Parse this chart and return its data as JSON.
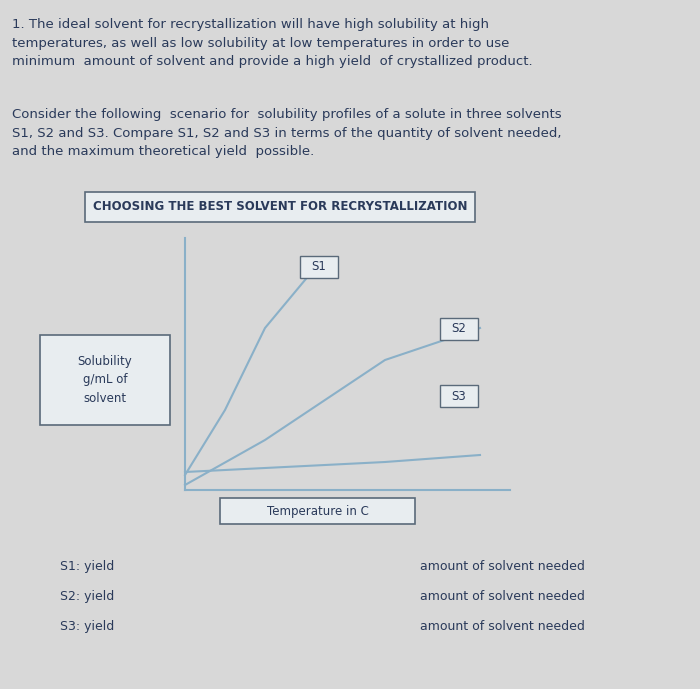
{
  "bg_color": "#d8d8d8",
  "title_text": "1. The ideal solvent for recrystallization will have high solubility at high\ntemperatures, as well as low solubility at low temperatures in order to use\nminimum  amount of solvent and provide a high yield  of crystallized product.",
  "body_text": "Consider the following  scenario for  solubility profiles of a solute in three solvents\nS1, S2 and S3. Compare S1, S2 and S3 in terms of the quantity of solvent needed,\nand the maximum theoretical yield  possible.",
  "chart_title": "CHOOSING THE BEST SOLVENT FOR RECRYSTALLIZATION",
  "ylabel_line1": "Solubility",
  "ylabel_line2": "g/mL of",
  "ylabel_line3": "solvent",
  "xlabel_text": "Temperature in C",
  "s1_label": "S1",
  "s2_label": "S2",
  "s3_label": "S3",
  "s1_yield": "S1: yield",
  "s2_yield": "S2: yield",
  "s3_yield": "S3: yield",
  "amount_text": "amount of solvent needed",
  "line_color": "#8ab0c8",
  "text_color": "#2a3a5a",
  "box_color": "#c8d4dc",
  "box_edge": "#5a6a7a"
}
